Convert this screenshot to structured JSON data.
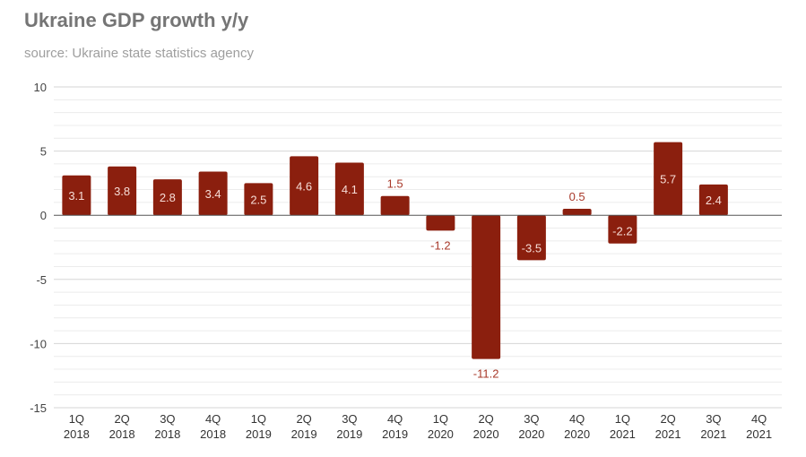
{
  "chart_data": {
    "type": "bar",
    "title": "Ukraine GDP growth y/y",
    "subtitle": "source: Ukraine state statistics agency",
    "xlabel": "",
    "ylabel": "",
    "categories": [
      "1Q 2018",
      "2Q 2018",
      "3Q 2018",
      "4Q 2018",
      "1Q 2019",
      "2Q 2019",
      "3Q 2019",
      "4Q 2019",
      "1Q 2020",
      "2Q 2020",
      "3Q 2020",
      "4Q 2020",
      "1Q 2021",
      "2Q 2021",
      "3Q 2021",
      "4Q 2021"
    ],
    "values": [
      3.1,
      3.8,
      2.8,
      3.4,
      2.5,
      4.6,
      4.1,
      1.5,
      -1.2,
      -11.2,
      -3.5,
      0.5,
      -2.2,
      5.7,
      2.4,
      null
    ],
    "ylim": [
      -15,
      10
    ],
    "yticks": [
      10,
      5,
      0,
      -5,
      -10,
      -15
    ],
    "grid": true,
    "minor_grid_step": 1,
    "legend": "none",
    "colors": {
      "bar": "#8b1f0e",
      "label_inside": "#f6dcd6",
      "label_outside": "#a8392a"
    }
  }
}
